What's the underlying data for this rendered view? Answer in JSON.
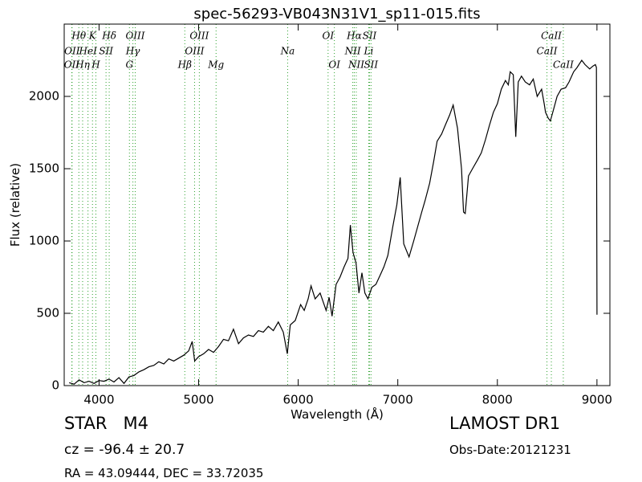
{
  "chart_data": {
    "type": "line",
    "title": "spec-56293-VB043N31V1_sp11-015.fits",
    "x_label": "Wavelength (Å)",
    "y_label": "Flux (relative)",
    "xlim": [
      3650,
      9130
    ],
    "ylim": [
      0,
      2500
    ],
    "xticks": [
      4000,
      5000,
      6000,
      7000,
      8000,
      9000
    ],
    "yticks": [
      0,
      500,
      1000,
      1500,
      2000
    ],
    "x": [
      3700,
      3750,
      3800,
      3850,
      3900,
      3950,
      4000,
      4050,
      4100,
      4150,
      4200,
      4250,
      4300,
      4350,
      4400,
      4450,
      4500,
      4550,
      4600,
      4650,
      4700,
      4750,
      4800,
      4850,
      4900,
      4935,
      4960,
      5000,
      5050,
      5100,
      5150,
      5200,
      5250,
      5300,
      5350,
      5400,
      5450,
      5500,
      5550,
      5600,
      5650,
      5700,
      5750,
      5800,
      5850,
      5890,
      5920,
      5970,
      6024,
      6060,
      6100,
      6129,
      6170,
      6220,
      6280,
      6310,
      6340,
      6380,
      6420,
      6460,
      6500,
      6524,
      6550,
      6580,
      6610,
      6640,
      6670,
      6700,
      6740,
      6780,
      6820,
      6860,
      6900,
      6950,
      6990,
      7024,
      7060,
      7113,
      7160,
      7200,
      7240,
      7274,
      7320,
      7360,
      7395,
      7440,
      7476,
      7520,
      7556,
      7600,
      7640,
      7660,
      7677,
      7710,
      7750,
      7800,
      7839,
      7880,
      7920,
      7960,
      8000,
      8040,
      8081,
      8110,
      8129,
      8160,
      8185,
      8210,
      8242,
      8280,
      8323,
      8360,
      8400,
      8444,
      8470,
      8484,
      8510,
      8532,
      8560,
      8600,
      8640,
      8685,
      8720,
      8766,
      8800,
      8847,
      8880,
      8927,
      8960,
      8984,
      8995,
      9000
    ],
    "series": [
      {
        "color": "#000000",
        "values": [
          20,
          10,
          40,
          20,
          30,
          15,
          35,
          30,
          45,
          25,
          55,
          15,
          60,
          70,
          95,
          110,
          130,
          140,
          165,
          150,
          185,
          170,
          190,
          210,
          240,
          305,
          170,
          200,
          220,
          250,
          230,
          270,
          320,
          310,
          390,
          290,
          330,
          350,
          340,
          380,
          370,
          410,
          380,
          440,
          370,
          220,
          420,
          450,
          560,
          520,
          600,
          690,
          600,
          640,
          520,
          610,
          480,
          700,
          750,
          820,
          880,
          1110,
          920,
          850,
          640,
          780,
          640,
          600,
          680,
          700,
          760,
          820,
          900,
          1100,
          1250,
          1440,
          980,
          890,
          1000,
          1100,
          1200,
          1280,
          1400,
          1550,
          1690,
          1740,
          1800,
          1870,
          1940,
          1780,
          1500,
          1200,
          1190,
          1450,
          1500,
          1560,
          1610,
          1700,
          1800,
          1890,
          1950,
          2050,
          2110,
          2080,
          2170,
          2150,
          1720,
          2100,
          2140,
          2100,
          2080,
          2120,
          2000,
          2050,
          1950,
          1890,
          1850,
          1830,
          1900,
          2000,
          2050,
          2060,
          2100,
          2170,
          2200,
          2250,
          2220,
          2190,
          2210,
          2220,
          2200,
          490
        ]
      }
    ],
    "line_color": "#2ca02c",
    "spectral_lines": [
      {
        "name": "Hθ",
        "wavelength": 3797,
        "row": 0
      },
      {
        "name": "K",
        "wavelength": 3934,
        "row": 0
      },
      {
        "name": "Hδ",
        "wavelength": 4102,
        "row": 0
      },
      {
        "name": "OIII",
        "wavelength": 4363,
        "row": 0
      },
      {
        "name": "OIII",
        "wavelength": 5007,
        "row": 0
      },
      {
        "name": "OI",
        "wavelength": 6300,
        "row": 0
      },
      {
        "name": "Hα",
        "wavelength": 6563,
        "row": 0
      },
      {
        "name": "SII",
        "wavelength": 6716,
        "row": 0
      },
      {
        "name": "CaII",
        "wavelength": 8542,
        "row": 0
      },
      {
        "name": "OII",
        "wavelength": 3729,
        "row": 1
      },
      {
        "name": "HeI",
        "wavelength": 3889,
        "row": 1
      },
      {
        "name": "SII",
        "wavelength": 4070,
        "row": 1
      },
      {
        "name": "Hγ",
        "wavelength": 4340,
        "row": 1
      },
      {
        "name": "OIII",
        "wavelength": 4959,
        "row": 1
      },
      {
        "name": "Na",
        "wavelength": 5894,
        "row": 1
      },
      {
        "name": "NII",
        "wavelength": 6548,
        "row": 1
      },
      {
        "name": "Li",
        "wavelength": 6708,
        "row": 1
      },
      {
        "name": "CaII",
        "wavelength": 8498,
        "row": 1
      },
      {
        "name": "OII",
        "wavelength": 3726,
        "row": 2
      },
      {
        "name": "Hη",
        "wavelength": 3835,
        "row": 2
      },
      {
        "name": "H",
        "wavelength": 3968,
        "row": 2
      },
      {
        "name": "G",
        "wavelength": 4305,
        "row": 2
      },
      {
        "name": "Hβ",
        "wavelength": 4861,
        "row": 2
      },
      {
        "name": "Mg",
        "wavelength": 5175,
        "row": 2
      },
      {
        "name": "OI",
        "wavelength": 6363,
        "row": 2
      },
      {
        "name": "NII",
        "wavelength": 6583,
        "row": 2
      },
      {
        "name": "SII",
        "wavelength": 6731,
        "row": 2
      },
      {
        "name": "CaII",
        "wavelength": 8662,
        "row": 2
      }
    ]
  },
  "footer": {
    "object": "STAR   M4",
    "cz": "cz = -96.4 ± 20.7",
    "coords": "RA = 43.09444, DEC = 33.72035",
    "survey": "LAMOST DR1",
    "obs_date": "Obs-Date:20121231"
  }
}
